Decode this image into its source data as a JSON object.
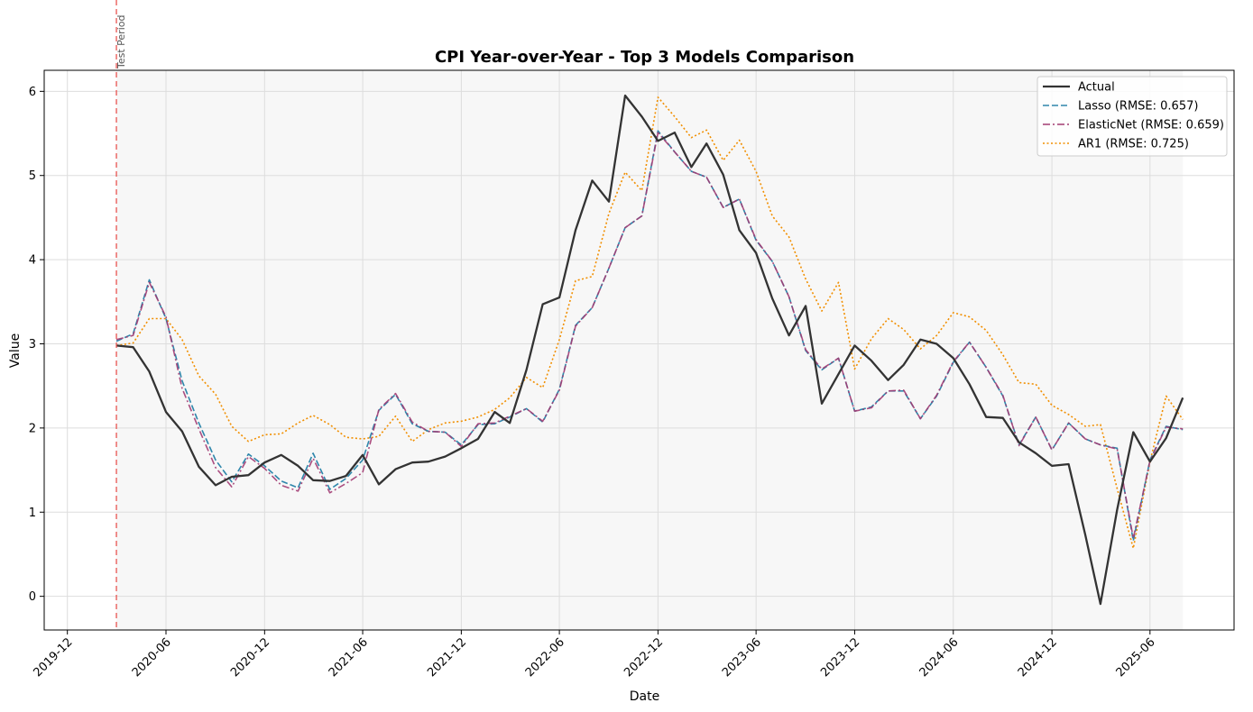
{
  "chart_data": {
    "type": "line",
    "title": "CPI Year-over-Year - Top 3 Models Comparison",
    "xlabel": "Date",
    "ylabel": "Value",
    "ylim": [
      -0.4,
      6.25
    ],
    "xlim": [
      "2019-10-19",
      "2025-11-04"
    ],
    "y_ticks": [
      0,
      1,
      2,
      3,
      4,
      5,
      6
    ],
    "x_ticks": [
      "2019-12",
      "2020-06",
      "2020-12",
      "2021-06",
      "2021-12",
      "2022-06",
      "2022-12",
      "2023-06",
      "2023-12",
      "2024-06",
      "2024-12",
      "2025-06"
    ],
    "grid": true,
    "legend_position": "top-right",
    "annotation": {
      "label": "Test Period",
      "date": "2020-03-01",
      "color": "#e8514d"
    },
    "shaded_region": [
      "2020-03-01",
      "2025-08-01"
    ],
    "x": [
      "2020-03",
      "2020-04",
      "2020-05",
      "2020-06",
      "2020-07",
      "2020-08",
      "2020-09",
      "2020-10",
      "2020-11",
      "2020-12",
      "2021-01",
      "2021-02",
      "2021-03",
      "2021-04",
      "2021-05",
      "2021-06",
      "2021-07",
      "2021-08",
      "2021-09",
      "2021-10",
      "2021-11",
      "2021-12",
      "2022-01",
      "2022-02",
      "2022-03",
      "2022-04",
      "2022-05",
      "2022-06",
      "2022-07",
      "2022-08",
      "2022-09",
      "2022-10",
      "2022-11",
      "2022-12",
      "2023-01",
      "2023-02",
      "2023-03",
      "2023-04",
      "2023-05",
      "2023-06",
      "2023-07",
      "2023-08",
      "2023-09",
      "2023-10",
      "2023-11",
      "2023-12",
      "2024-01",
      "2024-02",
      "2024-03",
      "2024-04",
      "2024-05",
      "2024-06",
      "2024-07",
      "2024-08",
      "2024-09",
      "2024-10",
      "2024-11",
      "2024-12",
      "2025-01",
      "2025-02",
      "2025-03",
      "2025-04",
      "2025-05",
      "2025-06",
      "2025-07",
      "2025-08"
    ],
    "series": [
      {
        "name": "Actual",
        "color": "#333333",
        "style": "solid",
        "values": [
          2.98,
          2.96,
          2.67,
          2.19,
          1.96,
          1.54,
          1.32,
          1.42,
          1.44,
          1.59,
          1.68,
          1.55,
          1.38,
          1.37,
          1.43,
          1.68,
          1.33,
          1.51,
          1.59,
          1.6,
          1.66,
          1.76,
          1.87,
          2.19,
          2.06,
          2.69,
          3.47,
          3.55,
          4.35,
          4.94,
          4.69,
          5.95,
          5.7,
          5.41,
          5.51,
          5.1,
          5.38,
          5.01,
          4.35,
          4.08,
          3.54,
          3.1,
          3.45,
          2.29,
          2.64,
          2.98,
          2.8,
          2.57,
          2.75,
          3.05,
          3.0,
          2.83,
          2.52,
          2.13,
          2.12,
          1.83,
          1.7,
          1.55,
          1.57,
          0.73,
          -0.09,
          1.03,
          1.95,
          1.6,
          1.88,
          2.36
        ]
      },
      {
        "name": "Lasso (RMSE: 0.657)",
        "color": "#2e86ab",
        "style": "dashed",
        "values": [
          3.03,
          3.12,
          3.76,
          3.3,
          2.56,
          2.06,
          1.62,
          1.36,
          1.69,
          1.55,
          1.37,
          1.29,
          1.7,
          1.27,
          1.4,
          1.62,
          2.21,
          2.4,
          2.05,
          1.96,
          1.95,
          1.8,
          2.04,
          2.05,
          2.13,
          2.23,
          2.07,
          2.46,
          3.22,
          3.43,
          3.9,
          4.38,
          4.52,
          5.53,
          5.28,
          5.05,
          4.98,
          4.62,
          4.72,
          4.23,
          3.98,
          3.56,
          2.92,
          2.69,
          2.83,
          2.2,
          2.25,
          2.44,
          2.44,
          2.11,
          2.38,
          2.78,
          3.02,
          2.72,
          2.38,
          1.8,
          2.13,
          1.74,
          2.06,
          1.87,
          1.8,
          1.76,
          0.66,
          1.62,
          2.02,
          1.98
        ]
      },
      {
        "name": "ElasticNet (RMSE: 0.659)",
        "color": "#a23b72",
        "style": "dashdot",
        "values": [
          3.05,
          3.1,
          3.73,
          3.32,
          2.47,
          1.99,
          1.53,
          1.3,
          1.66,
          1.52,
          1.32,
          1.25,
          1.64,
          1.23,
          1.34,
          1.47,
          2.22,
          2.41,
          2.07,
          1.96,
          1.95,
          1.78,
          2.05,
          2.06,
          2.14,
          2.23,
          2.08,
          2.45,
          3.21,
          3.43,
          3.9,
          4.38,
          4.52,
          5.51,
          5.28,
          5.05,
          4.98,
          4.62,
          4.72,
          4.24,
          3.98,
          3.56,
          2.93,
          2.7,
          2.83,
          2.2,
          2.24,
          2.44,
          2.45,
          2.11,
          2.39,
          2.79,
          3.02,
          2.72,
          2.39,
          1.79,
          2.13,
          1.74,
          2.06,
          1.87,
          1.8,
          1.75,
          0.69,
          1.61,
          2.01,
          1.99
        ]
      },
      {
        "name": "AR1 (RMSE: 0.725)",
        "color": "#f18f01",
        "style": "dotted",
        "values": [
          2.98,
          3.01,
          3.3,
          3.3,
          3.05,
          2.62,
          2.4,
          2.02,
          1.84,
          1.92,
          1.93,
          2.06,
          2.15,
          2.04,
          1.89,
          1.87,
          1.9,
          2.14,
          1.84,
          1.98,
          2.06,
          2.08,
          2.13,
          2.22,
          2.36,
          2.6,
          2.48,
          3.05,
          3.75,
          3.8,
          4.55,
          5.04,
          4.82,
          5.93,
          5.7,
          5.45,
          5.54,
          5.18,
          5.42,
          5.05,
          4.52,
          4.27,
          3.77,
          3.39,
          3.73,
          2.7,
          3.06,
          3.3,
          3.17,
          2.94,
          3.1,
          3.37,
          3.32,
          3.16,
          2.87,
          2.54,
          2.52,
          2.27,
          2.16,
          2.02,
          2.04,
          1.28,
          0.57,
          1.6,
          2.38,
          2.1
        ]
      }
    ]
  }
}
